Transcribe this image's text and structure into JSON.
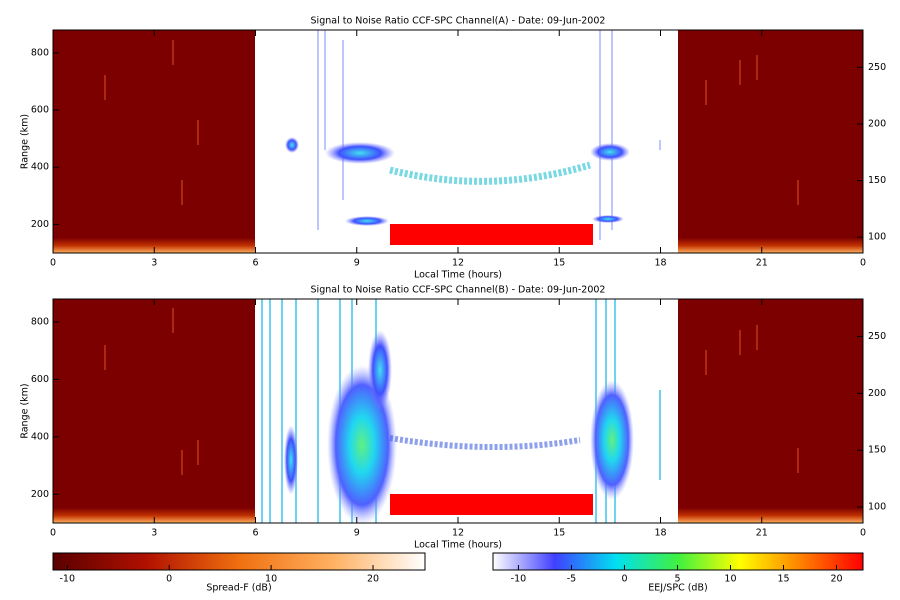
{
  "chart_data": [
    {
      "type": "heatmap",
      "title": "Signal to Noise Ratio CCF-SPC Channel(A) - Date: 09-Jun-2002",
      "xlabel": "Local Time (hours)",
      "ylabel": "Range (km)",
      "xlim": [
        0,
        24
      ],
      "xticks": [
        0,
        3,
        6,
        9,
        12,
        15,
        18,
        21,
        {
          "value": 24,
          "label": "0"
        }
      ],
      "ylim": [
        100,
        880
      ],
      "yticks": [
        200,
        400,
        600,
        800
      ],
      "y2lim": [
        86,
        283
      ],
      "y2ticks": [
        100,
        150,
        200,
        250
      ]
    },
    {
      "type": "heatmap",
      "title": "Signal to Noise Ratio CCF-SPC Channel(B) - Date: 09-Jun-2002",
      "xlabel": "Local Time (hours)",
      "ylabel": "Range (km)",
      "xlim": [
        0,
        24
      ],
      "xticks": [
        0,
        3,
        6,
        9,
        12,
        15,
        18,
        21,
        {
          "value": 24,
          "label": "0"
        }
      ],
      "ylim": [
        100,
        880
      ],
      "yticks": [
        200,
        400,
        600,
        800
      ],
      "y2lim": [
        86,
        283
      ],
      "y2ticks": [
        100,
        150,
        200,
        250
      ]
    }
  ],
  "colorbars": [
    {
      "label": "Spread-F (dB)",
      "lim": [
        -11.4,
        25.1
      ],
      "ticks": [
        -10,
        0,
        10,
        20
      ],
      "colors": [
        "#5a0000",
        "#b01000",
        "#f07010",
        "#ffb060",
        "#ffffff"
      ]
    },
    {
      "label": "EEJ/SPC (dB)",
      "lim": [
        -12.4,
        22.5
      ],
      "ticks": [
        -10,
        -5,
        0,
        5,
        10,
        15,
        20
      ],
      "colors": [
        "#ffffff",
        "#4040ff",
        "#00e0f0",
        "#40f040",
        "#ffff00",
        "#ff8000",
        "#ff0000"
      ]
    }
  ]
}
